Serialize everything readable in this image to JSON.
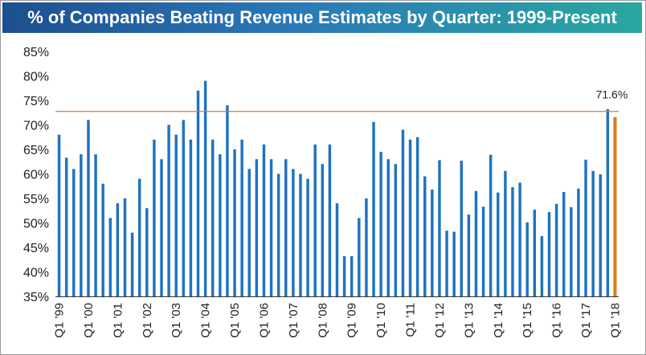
{
  "colors": {
    "bar": "#1f73bf",
    "highlight": "#e07a1f",
    "reference_line": "#d87a33"
  },
  "chart_data": {
    "type": "bar",
    "title": "% of Companies Beating Revenue Estimates by Quarter: 1999-Present",
    "xlabel": "",
    "ylabel": "",
    "ylim": [
      35,
      85
    ],
    "yticks": [
      "35%",
      "40%",
      "45%",
      "50%",
      "55%",
      "60%",
      "65%",
      "70%",
      "75%",
      "80%",
      "85%"
    ],
    "ytick_values": [
      35,
      40,
      45,
      50,
      55,
      60,
      65,
      70,
      75,
      80,
      85
    ],
    "grid": false,
    "xtick_labels": [
      "Q1 '99",
      "Q1 '00",
      "Q1 '01",
      "Q1 '02",
      "Q1 '03",
      "Q1 '04",
      "Q1 '05",
      "Q1 '06",
      "Q1 '07",
      "Q1 '08",
      "Q1 '09",
      "Q1 '10",
      "Q1 '11",
      "Q1 '12",
      "Q1 '13",
      "Q1 '14",
      "Q1 '15",
      "Q1 '16",
      "Q1 '17",
      "Q1 '18"
    ],
    "categories": [
      "Q1 '99",
      "Q2 '99",
      "Q3 '99",
      "Q4 '99",
      "Q1 '00",
      "Q2 '00",
      "Q3 '00",
      "Q4 '00",
      "Q1 '01",
      "Q2 '01",
      "Q3 '01",
      "Q4 '01",
      "Q1 '02",
      "Q2 '02",
      "Q3 '02",
      "Q4 '02",
      "Q1 '03",
      "Q2 '03",
      "Q3 '03",
      "Q4 '03",
      "Q1 '04",
      "Q2 '04",
      "Q3 '04",
      "Q4 '04",
      "Q1 '05",
      "Q2 '05",
      "Q3 '05",
      "Q4 '05",
      "Q1 '06",
      "Q2 '06",
      "Q3 '06",
      "Q4 '06",
      "Q1 '07",
      "Q2 '07",
      "Q3 '07",
      "Q4 '07",
      "Q1 '08",
      "Q2 '08",
      "Q3 '08",
      "Q4 '08",
      "Q1 '09",
      "Q2 '09",
      "Q3 '09",
      "Q4 '09",
      "Q1 '10",
      "Q2 '10",
      "Q3 '10",
      "Q4 '10",
      "Q1 '11",
      "Q2 '11",
      "Q3 '11",
      "Q4 '11",
      "Q1 '12",
      "Q2 '12",
      "Q3 '12",
      "Q4 '12",
      "Q1 '13",
      "Q2 '13",
      "Q3 '13",
      "Q4 '13",
      "Q1 '14",
      "Q2 '14",
      "Q3 '14",
      "Q4 '14",
      "Q1 '15",
      "Q2 '15",
      "Q3 '15",
      "Q4 '15",
      "Q1 '16",
      "Q2 '16",
      "Q3 '16",
      "Q4 '16",
      "Q1 '17",
      "Q2 '17",
      "Q3 '17",
      "Q4 '17",
      "Q1 '18"
    ],
    "values": [
      68,
      63.3,
      61,
      64,
      71,
      64,
      58,
      51,
      54,
      55,
      48,
      59,
      53,
      67,
      63,
      70,
      68,
      71,
      67,
      77,
      79,
      67,
      64,
      74,
      65,
      67,
      61,
      63,
      66,
      63,
      60,
      63,
      61,
      60,
      59,
      66,
      62,
      66,
      54,
      43.2,
      43.2,
      51,
      55,
      70.6,
      64.5,
      63,
      62,
      69,
      67,
      67.5,
      59.5,
      56.8,
      62.8,
      48.4,
      48.2,
      62.7,
      51.7,
      56.5,
      53.3,
      63.9,
      56.2,
      60.6,
      57.3,
      58.2,
      50.1,
      52.7,
      47.3,
      52.2,
      53.9,
      56.3,
      53.2,
      57,
      62.9,
      60.6,
      59.9,
      73.2,
      71.6
    ],
    "highlight_index": 76,
    "reference_line": {
      "value": 71.6,
      "label": "71.6%"
    }
  }
}
